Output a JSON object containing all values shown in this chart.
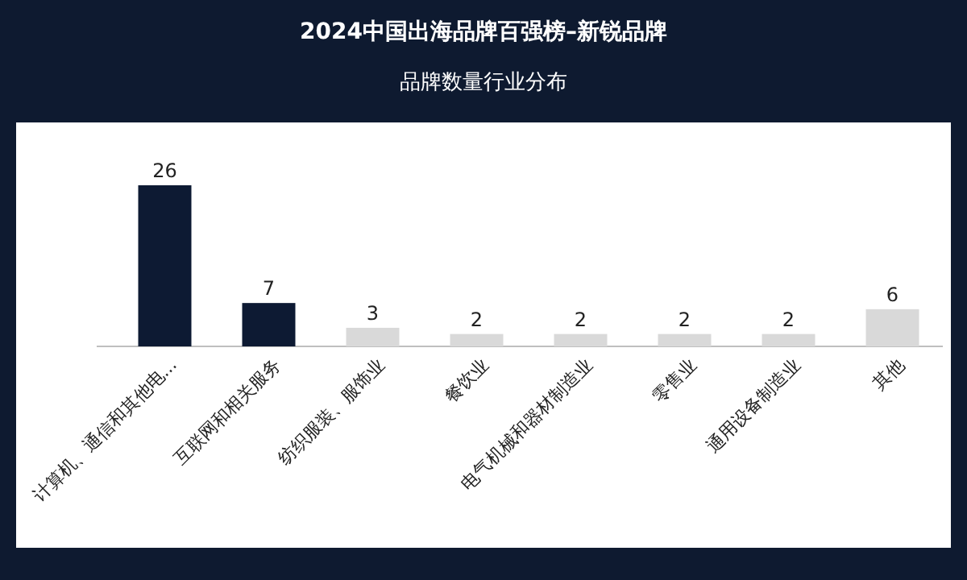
{
  "chart_data": {
    "type": "bar",
    "title": "2024中国出海品牌百强榜–新锐品牌",
    "subtitle": "品牌数量行业分布",
    "categories": [
      "计算机、通信和其他电...",
      "互联网和相关服务",
      "纺织服装、服饰业",
      "餐饮业",
      "电气机械和器材制造业",
      "零售业",
      "通用设备制造业",
      "其他"
    ],
    "values": [
      26,
      7,
      3,
      2,
      2,
      2,
      2,
      6
    ],
    "colors": [
      "#0d1a33",
      "#0d1a33",
      "#d9d9d9",
      "#d9d9d9",
      "#d9d9d9",
      "#d9d9d9",
      "#d9d9d9",
      "#d9d9d9"
    ],
    "data_labels": true
  }
}
